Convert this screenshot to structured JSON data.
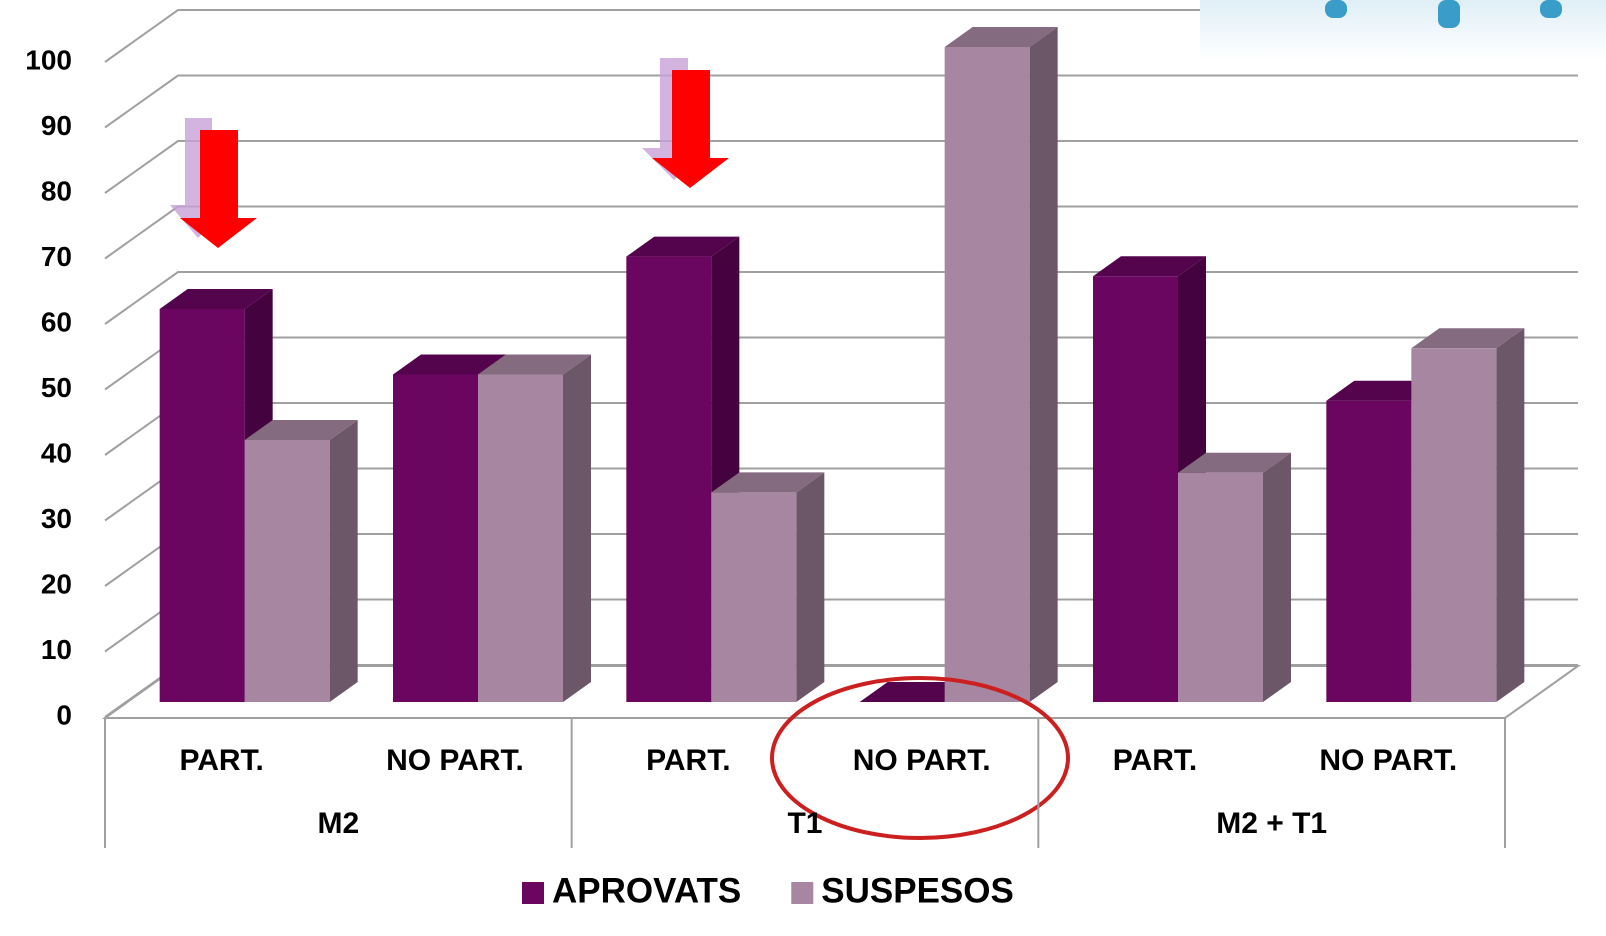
{
  "chart_data": {
    "type": "bar3d",
    "categories": [
      "PART.",
      "NO PART.",
      "PART.",
      "NO PART.",
      "PART.",
      "NO PART."
    ],
    "groups": [
      "M2",
      "T1",
      "M2 + T1"
    ],
    "series": [
      {
        "name": "APROVATS",
        "color": "#6a0560",
        "values": [
          60,
          50,
          68,
          0,
          65,
          46
        ]
      },
      {
        "name": "SUSPESOS",
        "color": "#a686a0",
        "values": [
          40,
          50,
          32,
          100,
          35,
          54
        ]
      }
    ],
    "ylim": [
      0,
      100
    ],
    "yticks": [
      0,
      10,
      20,
      30,
      40,
      50,
      60,
      70,
      80,
      90,
      100
    ],
    "grid": true
  }
}
